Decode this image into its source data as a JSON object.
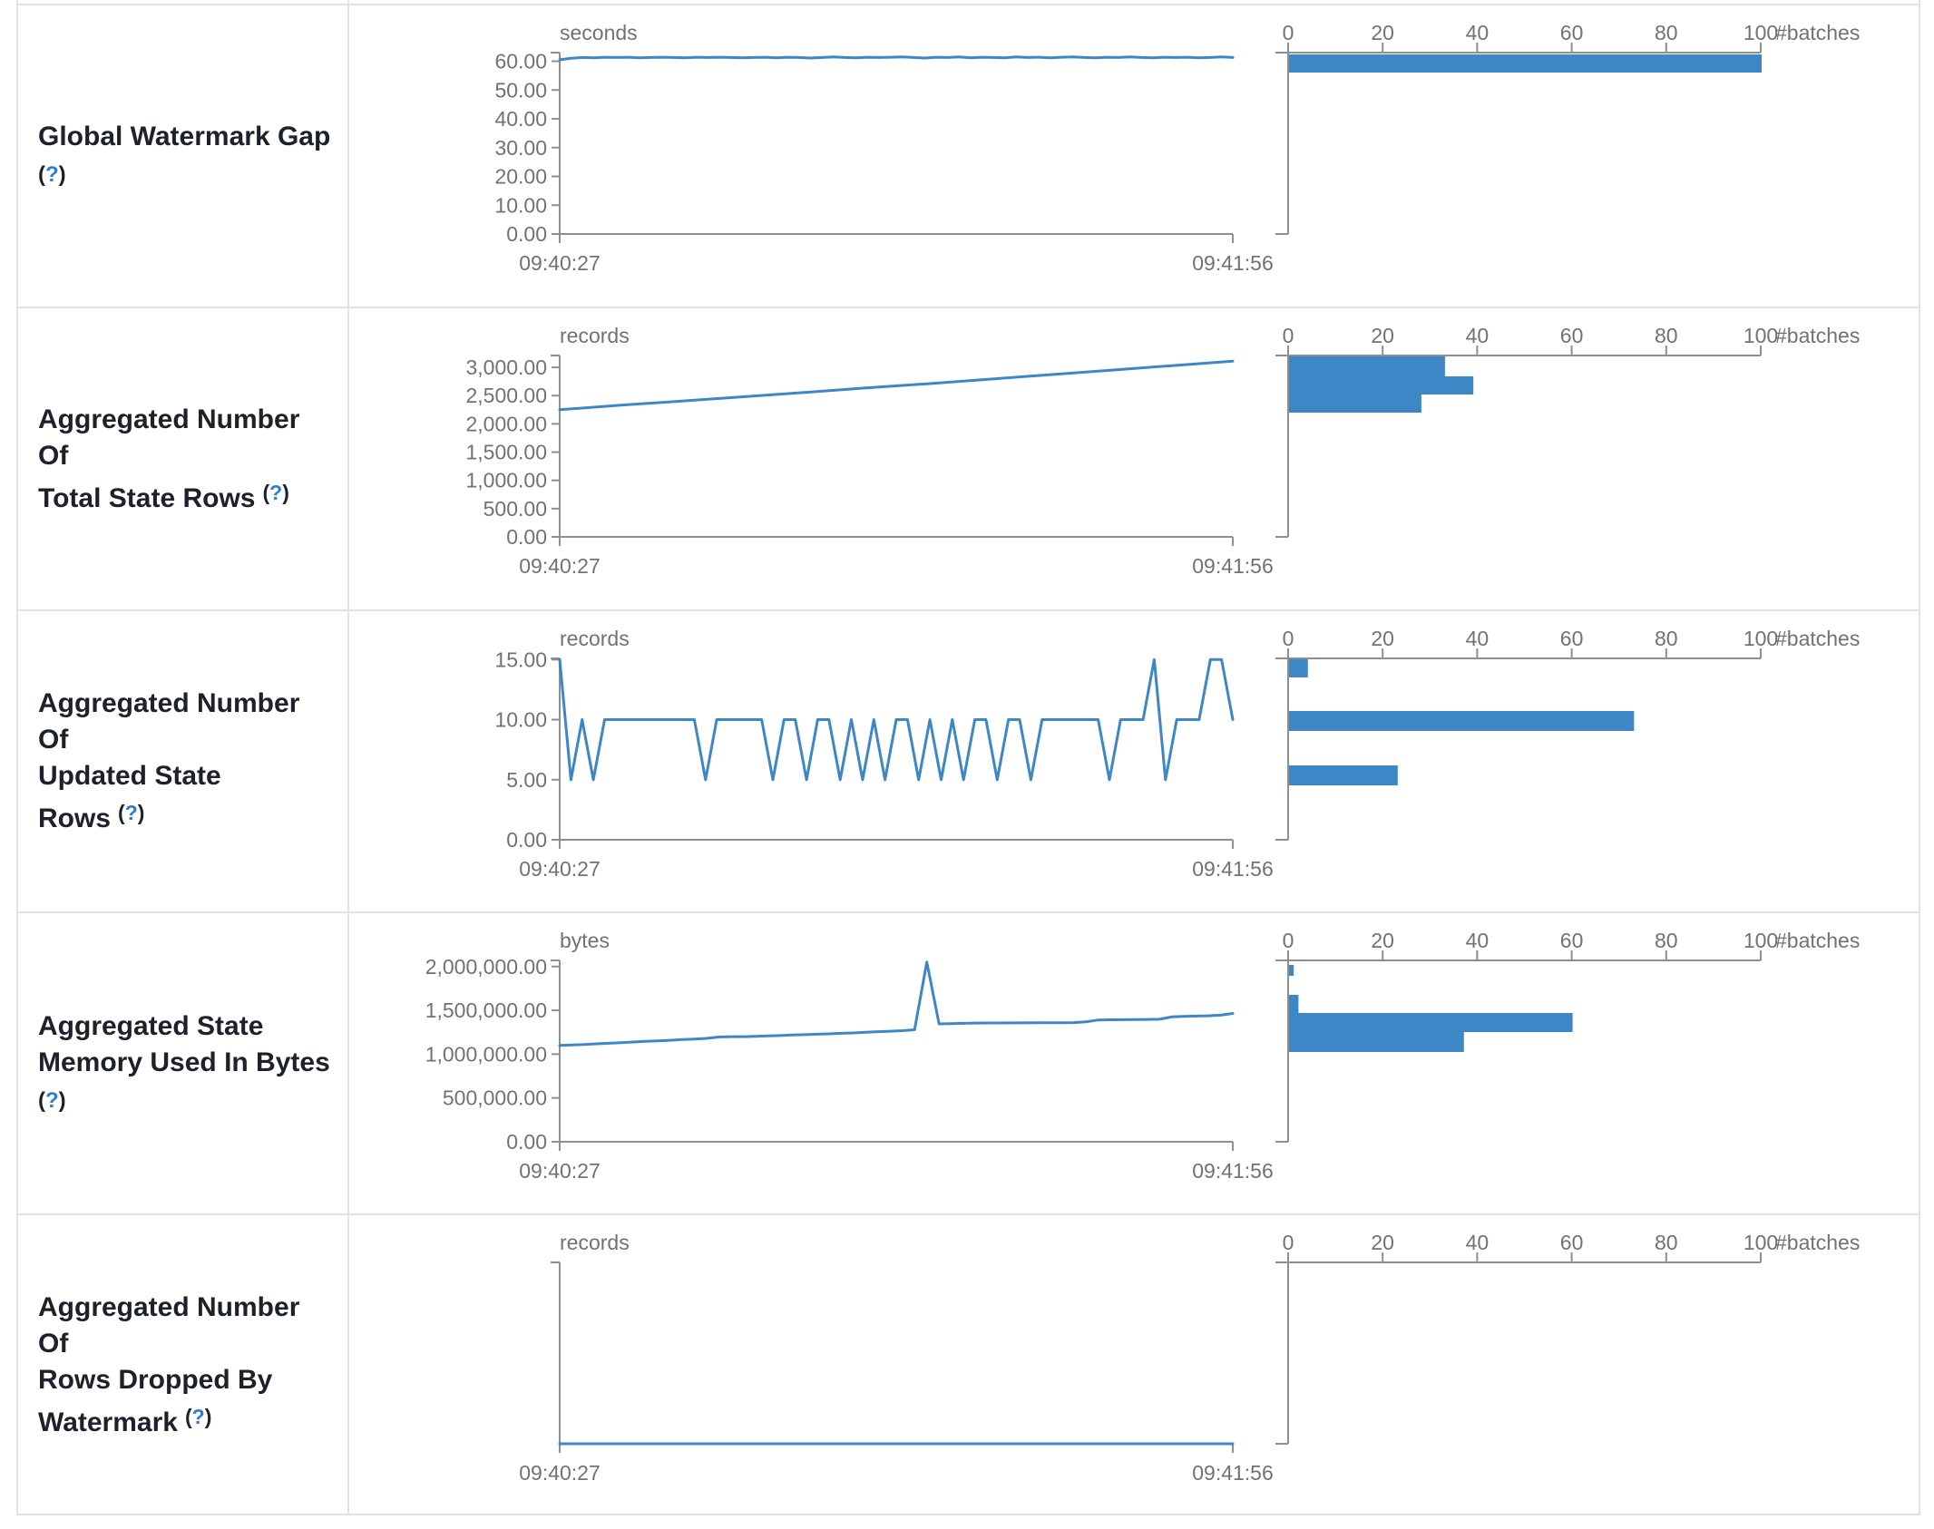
{
  "help": {
    "open": "(",
    "q": "?",
    "close": ")"
  },
  "style": {
    "accent_blue": "#3d87c6",
    "axis_line": "#8c8f93",
    "tick_text": "#6f7276",
    "label_text": "#1d2129",
    "help_blue": "#2b7cd8",
    "border": "#dfe3e8"
  },
  "rows": [
    {
      "label_lines": [
        "Global Watermark Gap"
      ],
      "help_placement": "ownline"
    },
    {
      "label_lines": [
        "Aggregated Number Of",
        "Total State Rows"
      ],
      "help_placement": "inline"
    },
    {
      "label_lines": [
        "Aggregated Number Of",
        "Updated State Rows"
      ],
      "help_placement": "inline"
    },
    {
      "label_lines": [
        "Aggregated State",
        "Memory Used In Bytes"
      ],
      "help_placement": "ownline"
    },
    {
      "label_lines": [
        "Aggregated Number Of",
        "Rows Dropped By",
        "Watermark"
      ],
      "help_placement": "inline"
    }
  ],
  "chart_data": [
    {
      "row_label": "Global Watermark Gap",
      "timeline": {
        "type": "line",
        "unit": "seconds",
        "x_tick_labels": [
          "09:40:27",
          "09:41:56"
        ],
        "y_ticks": [
          {
            "v": 0,
            "label": "0.00"
          },
          {
            "v": 10,
            "label": "10.00"
          },
          {
            "v": 20,
            "label": "20.00"
          },
          {
            "v": 30,
            "label": "30.00"
          },
          {
            "v": 40,
            "label": "40.00"
          },
          {
            "v": 50,
            "label": "50.00"
          },
          {
            "v": 60,
            "label": "60.00"
          }
        ],
        "y_axis_max": 63,
        "values": [
          60.5,
          61.0,
          61.3,
          61.2,
          61.4,
          61.3,
          61.4,
          61.2,
          61.3,
          61.4,
          61.3,
          61.2,
          61.4,
          61.3,
          61.4,
          61.3,
          61.2,
          61.3,
          61.4,
          61.2,
          61.4,
          61.3,
          61.1,
          61.3,
          61.5,
          61.3,
          61.2,
          61.4,
          61.3,
          61.4,
          61.5,
          61.3,
          61.1,
          61.4,
          61.3,
          61.5,
          61.2,
          61.4,
          61.3,
          61.2,
          61.5,
          61.3,
          61.4,
          61.2,
          61.4,
          61.5,
          61.3,
          61.2,
          61.4,
          61.3,
          61.5,
          61.3,
          61.2,
          61.4,
          61.3,
          61.4,
          61.2,
          61.3,
          61.5,
          61.3
        ]
      },
      "histogram": {
        "type": "bar",
        "unit": "#batches",
        "xlim": [
          0,
          100
        ],
        "x_ticks": [
          {
            "v": 0,
            "label": "0"
          },
          {
            "v": 20,
            "label": "20"
          },
          {
            "v": 40,
            "label": "40"
          },
          {
            "v": 60,
            "label": "60"
          },
          {
            "v": 80,
            "label": "80"
          },
          {
            "v": 100,
            "label": "100"
          }
        ],
        "bars": [
          {
            "bin_level": 61,
            "count": 100,
            "top_frac": 0.01,
            "bottom_frac": 0.11
          }
        ]
      }
    },
    {
      "row_label": "Aggregated Number Of Total State Rows",
      "timeline": {
        "type": "line",
        "unit": "records",
        "x_tick_labels": [
          "09:40:27",
          "09:41:56"
        ],
        "y_ticks": [
          {
            "v": 0,
            "label": "0.00"
          },
          {
            "v": 500,
            "label": "500.00"
          },
          {
            "v": 1000,
            "label": "1,000.00"
          },
          {
            "v": 1500,
            "label": "1,500.00"
          },
          {
            "v": 2000,
            "label": "2,000.00"
          },
          {
            "v": 2500,
            "label": "2,500.00"
          },
          {
            "v": 3000,
            "label": "3,000.00"
          }
        ],
        "y_axis_max": 3210,
        "values": [
          2250,
          2330,
          2405,
          2480,
          2555,
          2635,
          2710,
          2790,
          2870,
          2950,
          3030,
          3110
        ]
      },
      "histogram": {
        "type": "bar",
        "unit": "#batches",
        "xlim": [
          0,
          100
        ],
        "x_ticks": [
          {
            "v": 0,
            "label": "0"
          },
          {
            "v": 20,
            "label": "20"
          },
          {
            "v": 40,
            "label": "40"
          },
          {
            "v": 60,
            "label": "60"
          },
          {
            "v": 80,
            "label": "80"
          },
          {
            "v": 100,
            "label": "100"
          }
        ],
        "bars": [
          {
            "bin_level": 2950,
            "count": 33,
            "top_frac": 0.005,
            "bottom_frac": 0.115
          },
          {
            "bin_level": 2620,
            "count": 39,
            "top_frac": 0.115,
            "bottom_frac": 0.215
          },
          {
            "bin_level": 2300,
            "count": 28,
            "top_frac": 0.215,
            "bottom_frac": 0.315
          }
        ]
      }
    },
    {
      "row_label": "Aggregated Number Of Updated State Rows",
      "timeline": {
        "type": "line",
        "unit": "records",
        "x_tick_labels": [
          "09:40:27",
          "09:41:56"
        ],
        "y_ticks": [
          {
            "v": 0,
            "label": "0.00"
          },
          {
            "v": 5,
            "label": "5.00"
          },
          {
            "v": 10,
            "label": "10.00"
          },
          {
            "v": 15,
            "label": "15.00"
          }
        ],
        "y_axis_max": 15.1,
        "values": [
          15,
          5,
          10,
          5,
          10,
          10,
          10,
          10,
          10,
          10,
          10,
          10,
          10,
          5,
          10,
          10,
          10,
          10,
          10,
          5,
          10,
          10,
          5,
          10,
          10,
          5,
          10,
          5,
          10,
          5,
          10,
          10,
          5,
          10,
          5,
          10,
          5,
          10,
          10,
          5,
          10,
          10,
          5,
          10,
          10,
          10,
          10,
          10,
          10,
          5,
          10,
          10,
          10,
          15,
          5,
          10,
          10,
          10,
          15,
          15,
          10
        ]
      },
      "histogram": {
        "type": "bar",
        "unit": "#batches",
        "xlim": [
          0,
          100
        ],
        "x_ticks": [
          {
            "v": 0,
            "label": "0"
          },
          {
            "v": 20,
            "label": "20"
          },
          {
            "v": 40,
            "label": "40"
          },
          {
            "v": 60,
            "label": "60"
          },
          {
            "v": 80,
            "label": "80"
          },
          {
            "v": 100,
            "label": "100"
          }
        ],
        "bars": [
          {
            "bin_level": 15,
            "count": 4,
            "top_frac": 0.005,
            "bottom_frac": 0.105
          },
          {
            "bin_level": 10,
            "count": 73,
            "top_frac": 0.29,
            "bottom_frac": 0.4
          },
          {
            "bin_level": 5,
            "count": 23,
            "top_frac": 0.59,
            "bottom_frac": 0.7
          }
        ]
      }
    },
    {
      "row_label": "Aggregated State Memory Used In Bytes",
      "timeline": {
        "type": "line",
        "unit": "bytes",
        "x_tick_labels": [
          "09:40:27",
          "09:41:56"
        ],
        "y_ticks": [
          {
            "v": 0,
            "label": "0.00"
          },
          {
            "v": 500000,
            "label": "500,000.00"
          },
          {
            "v": 1000000,
            "label": "1,000,000.00"
          },
          {
            "v": 1500000,
            "label": "1,500,000.00"
          },
          {
            "v": 2000000,
            "label": "2,000,000.00"
          }
        ],
        "y_axis_max": 2070000,
        "values": [
          1100000,
          1105000,
          1110000,
          1118000,
          1124000,
          1130000,
          1138000,
          1146000,
          1152000,
          1158000,
          1166000,
          1172000,
          1180000,
          1195000,
          1200000,
          1200000,
          1204000,
          1208000,
          1212000,
          1218000,
          1222000,
          1228000,
          1232000,
          1238000,
          1242000,
          1250000,
          1256000,
          1262000,
          1268000,
          1278000,
          2050000,
          1345000,
          1348000,
          1352000,
          1355000,
          1356000,
          1356000,
          1357000,
          1357000,
          1358000,
          1358000,
          1359000,
          1360000,
          1368000,
          1390000,
          1392000,
          1393000,
          1394000,
          1396000,
          1398000,
          1425000,
          1430000,
          1434000,
          1438000,
          1445000,
          1465000
        ]
      },
      "histogram": {
        "type": "bar",
        "unit": "#batches",
        "xlim": [
          0,
          100
        ],
        "x_ticks": [
          {
            "v": 0,
            "label": "0"
          },
          {
            "v": 20,
            "label": "20"
          },
          {
            "v": 40,
            "label": "40"
          },
          {
            "v": 60,
            "label": "60"
          },
          {
            "v": 80,
            "label": "80"
          },
          {
            "v": 100,
            "label": "100"
          }
        ],
        "bars": [
          {
            "bin_level": 2000000,
            "count": 1,
            "top_frac": 0.025,
            "bottom_frac": 0.085
          },
          {
            "bin_level": 1500000,
            "count": 2,
            "top_frac": 0.19,
            "bottom_frac": 0.29
          },
          {
            "bin_level": 1320000,
            "count": 60,
            "top_frac": 0.29,
            "bottom_frac": 0.395
          },
          {
            "bin_level": 1100000,
            "count": 37,
            "top_frac": 0.395,
            "bottom_frac": 0.505
          }
        ]
      }
    },
    {
      "row_label": "Aggregated Number Of Rows Dropped By Watermark",
      "timeline": {
        "type": "line",
        "unit": "records",
        "x_tick_labels": [
          "09:40:27",
          "09:41:56"
        ],
        "y_ticks": [],
        "y_axis_max": 1,
        "values": [
          0,
          0
        ]
      },
      "histogram": {
        "type": "bar",
        "unit": "#batches",
        "xlim": [
          0,
          100
        ],
        "x_ticks": [
          {
            "v": 0,
            "label": "0"
          },
          {
            "v": 20,
            "label": "20"
          },
          {
            "v": 40,
            "label": "40"
          },
          {
            "v": 60,
            "label": "60"
          },
          {
            "v": 80,
            "label": "80"
          },
          {
            "v": 100,
            "label": "100"
          }
        ],
        "bars": []
      }
    }
  ]
}
